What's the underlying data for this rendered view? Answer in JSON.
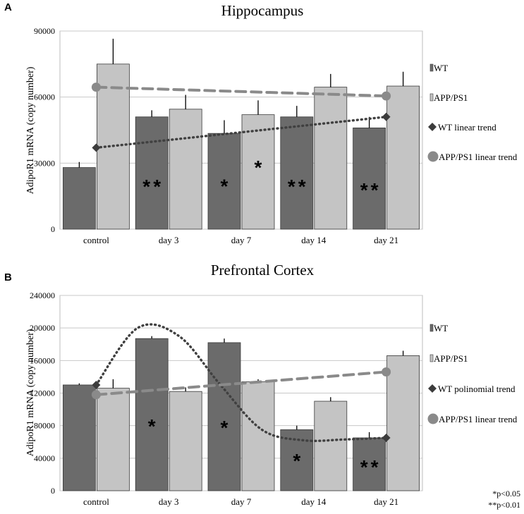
{
  "chart_data": [
    {
      "type": "bar",
      "panel": "A",
      "title": "Hippocampus",
      "xlabel": "",
      "ylabel": "AdipoR1 mRNA (copy number)",
      "ylim": [
        0,
        90000
      ],
      "yticks": [
        0,
        30000,
        60000,
        90000
      ],
      "categories": [
        "control",
        "day 3",
        "day 7",
        "day 14",
        "day 21"
      ],
      "series": [
        {
          "name": "WT",
          "color": "#6b6b6b",
          "values": [
            28000,
            51000,
            43500,
            51000,
            46000
          ],
          "errors": [
            2500,
            3000,
            6000,
            5000,
            5000
          ]
        },
        {
          "name": "APP/PS1",
          "color": "#c4c4c4",
          "values": [
            75000,
            54500,
            52000,
            64500,
            65000
          ],
          "errors": [
            11500,
            6500,
            6500,
            6000,
            6500
          ]
        }
      ],
      "significance": [
        "",
        "**",
        "*",
        "**",
        "**"
      ],
      "apps1_significance": [
        "",
        "",
        "*",
        "",
        ""
      ],
      "trends": [
        {
          "name": "WT linear trend",
          "style": "dotted",
          "marker": "diamond",
          "color": "#404040",
          "start": 37000,
          "end": 51000
        },
        {
          "name": "APP/PS1 linear trend",
          "style": "dashed",
          "marker": "circle",
          "color": "#8a8a8a",
          "start": 64500,
          "end": 60500
        }
      ]
    },
    {
      "type": "bar",
      "panel": "B",
      "title": "Prefrontal Cortex",
      "xlabel": "",
      "ylabel": "AdipoR1 mRNA (copy number)",
      "ylim": [
        0,
        240000
      ],
      "yticks": [
        0,
        40000,
        80000,
        120000,
        160000,
        200000,
        240000
      ],
      "categories": [
        "control",
        "day 3",
        "day 7",
        "day 14",
        "day 21"
      ],
      "series": [
        {
          "name": "WT",
          "color": "#6b6b6b",
          "values": [
            130000,
            187000,
            182000,
            75000,
            65000
          ],
          "errors": [
            2000,
            3000,
            5000,
            5000,
            7000
          ]
        },
        {
          "name": "APP/PS1",
          "color": "#c4c4c4",
          "values": [
            126000,
            122000,
            134000,
            110000,
            166000
          ],
          "errors": [
            11000,
            5000,
            3000,
            5000,
            6000
          ]
        }
      ],
      "significance": [
        "",
        "*",
        "*",
        "*",
        "**"
      ],
      "apps1_significance": [
        "",
        "",
        "",
        "",
        ""
      ],
      "trends": [
        {
          "name": "WT polinomial trend",
          "style": "dotted",
          "marker": "diamond",
          "color": "#404040",
          "points": [
            130000,
            200000,
            190000,
            130000,
            75000,
            62000,
            63000,
            65000
          ]
        },
        {
          "name": "APP/PS1 linear trend",
          "style": "dashed",
          "marker": "circle",
          "color": "#8a8a8a",
          "start": 118000,
          "end": 146000
        }
      ]
    }
  ],
  "notes": [
    "*p<0.05",
    "**p<0.01"
  ]
}
